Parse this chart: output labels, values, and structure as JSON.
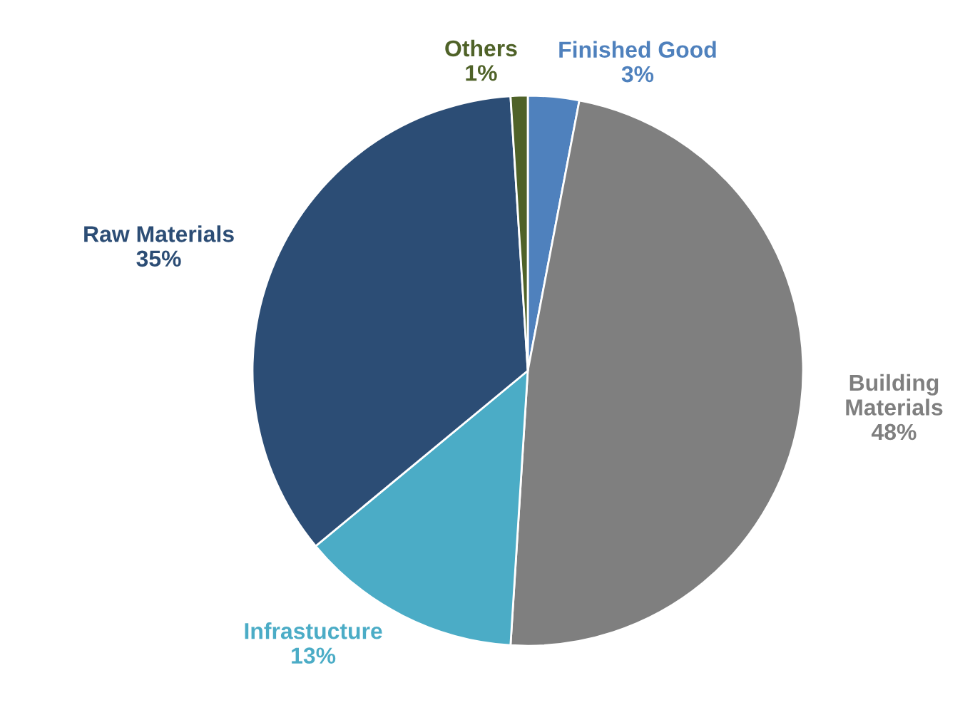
{
  "chart_data": {
    "type": "pie",
    "categories": [
      "Finished Good",
      "Building Materials",
      "Infrastucture",
      "Raw Materials",
      "Others"
    ],
    "values": [
      3,
      48,
      13,
      35,
      1
    ],
    "colors": [
      "#4f81bd",
      "#7f7f7f",
      "#4bacc6",
      "#2c4d75",
      "#4f6228"
    ],
    "value_labels": [
      "3%",
      "48%",
      "13%",
      "35%",
      "1%"
    ],
    "legend": false
  }
}
